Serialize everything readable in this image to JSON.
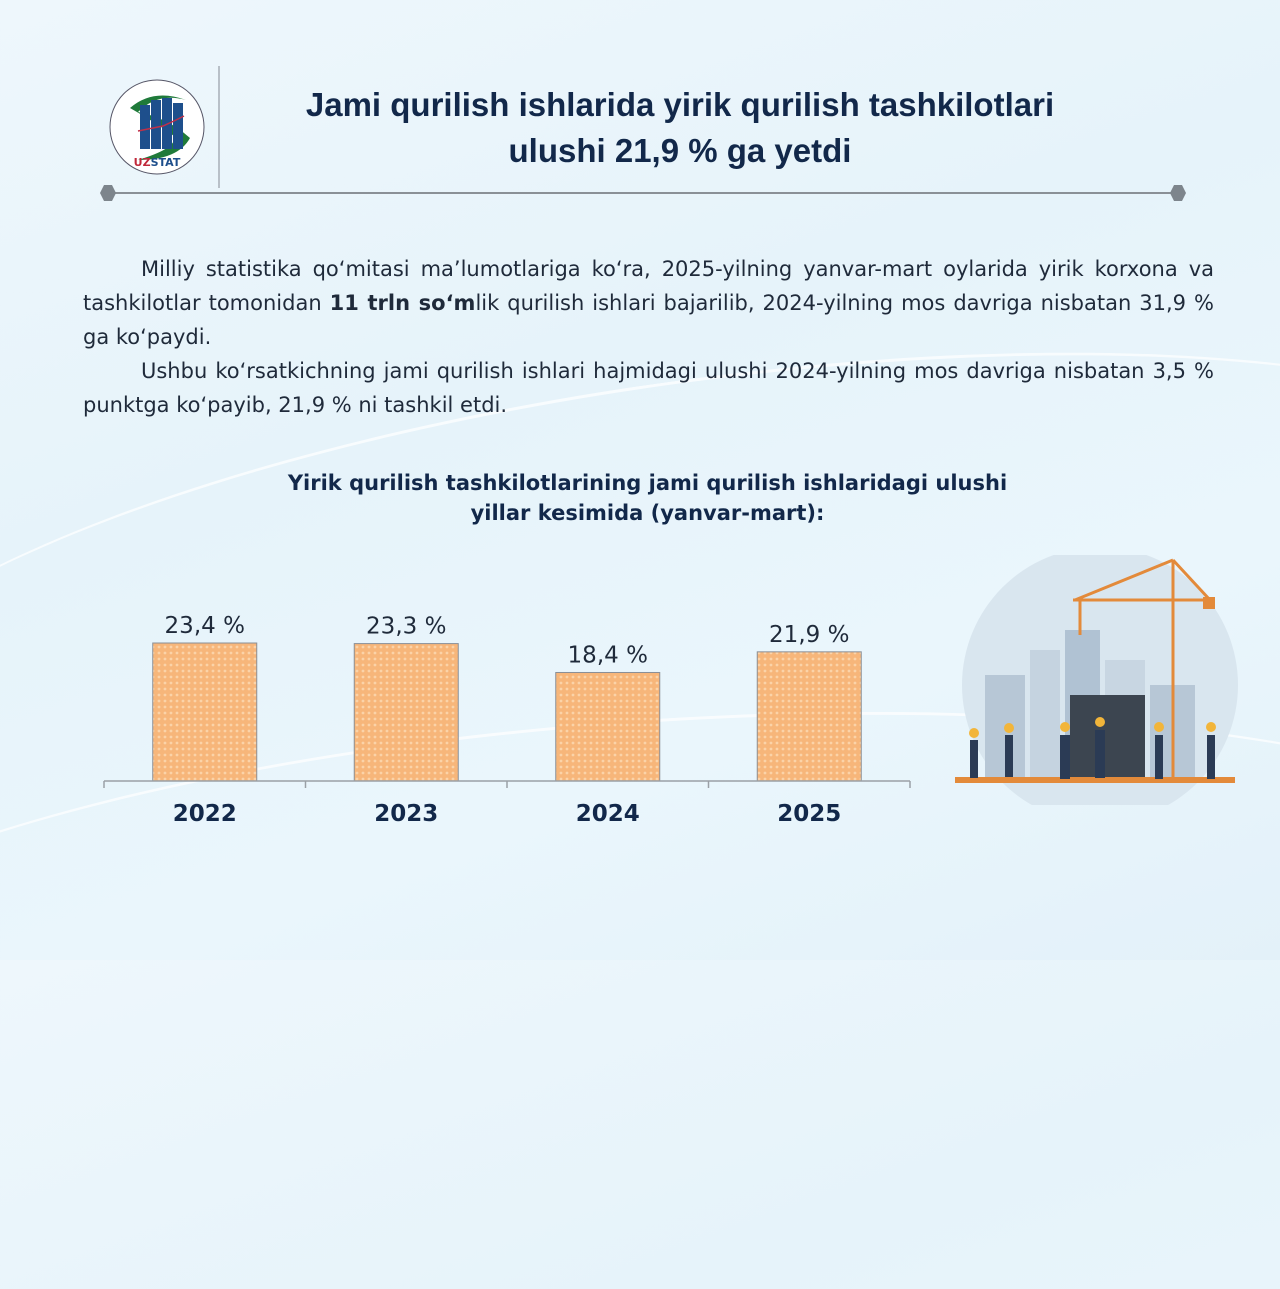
{
  "header": {
    "logo_text": "UZSTAT",
    "title_line1": "Jami qurilish ishlarida yirik qurilish tashkilotlari",
    "title_line2": "ulushi 21,9 % ga yetdi"
  },
  "body": {
    "p1_before": "Milliy statistika qo‘mitasi ma’lumotlariga ko‘ra, 2025-yilning yanvar-mart oylarida yirik korxona va tashkilotlar tomonidan ",
    "p1_bold": "11 trln so‘m",
    "p1_after": "lik qurilish ishlari bajarilib, 2024-yilning mos davriga nisbatan 31,9 % ga ko‘paydi.",
    "p2": "Ushbu ko‘rsatkichning jami qurilish ishlari hajmidagi ulushi 2024-yilning mos davriga nisbatan 3,5 % punktga ko‘payib, 21,9 % ni tashkil etdi."
  },
  "chart_data": {
    "type": "bar",
    "title_line1": "Yirik qurilish tashkilotlarining jami qurilish ishlaridagi ulushi",
    "title_line2": "yillar kesimida (yanvar-mart):",
    "categories": [
      "2022",
      "2023",
      "2024",
      "2025"
    ],
    "values": [
      23.4,
      23.3,
      18.4,
      21.9
    ],
    "data_labels": [
      "23,4 %",
      "23,3 %",
      "18,4 %",
      "21,9 %"
    ],
    "ylim": [
      0,
      30
    ],
    "grid": false,
    "bar_color": "#f7b67a",
    "xlabel": "",
    "ylabel": ""
  }
}
